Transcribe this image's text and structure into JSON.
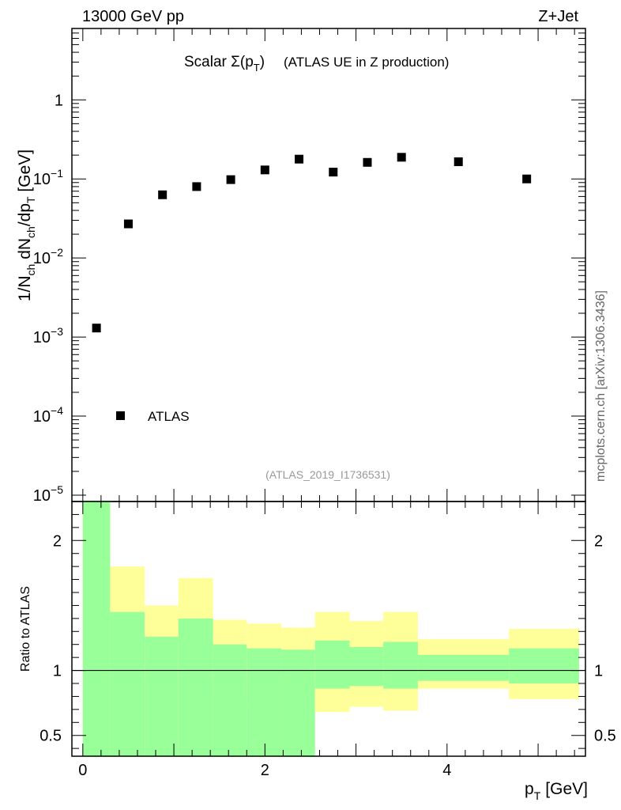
{
  "header": {
    "energy_label": "13000 GeV pp",
    "process_label": "Z+Jet",
    "side_label": "mcplots.cern.ch [arXiv:1306.3436]"
  },
  "chart_data": [
    {
      "type": "scatter",
      "panel": "main",
      "title_prefix": "Scalar ",
      "title_sigma": "Σ(p",
      "title_sub": "T",
      "title_close": ")",
      "title_suffix": "(ATLAS UE in Z production)",
      "analysis_id": "(ATLAS_2019_I1736531)",
      "ylabel": {
        "p1": "1/N",
        "s1": "ch",
        "p2": " dN",
        "s2": "ch",
        "p3": "/dp",
        "s3": "T",
        "p4": " [GeV]"
      },
      "yscale": "log",
      "ylim": [
        1e-05,
        8
      ],
      "xlim": [
        -0.12,
        5.52
      ],
      "legend": {
        "label": "ATLAS",
        "position": "bottom-left"
      },
      "yticks": [
        {
          "value": 1,
          "base": "1",
          "exp": ""
        },
        {
          "value": 0.1,
          "base": "10",
          "exp": "−1"
        },
        {
          "value": 0.01,
          "base": "10",
          "exp": "−2"
        },
        {
          "value": 0.001,
          "base": "10",
          "exp": "−3"
        },
        {
          "value": 0.0001,
          "base": "10",
          "exp": "−4"
        },
        {
          "value": 1e-05,
          "base": "10",
          "exp": "−5"
        }
      ],
      "series": [
        {
          "name": "ATLAS",
          "color": "#000000",
          "x": [
            0.15,
            0.5,
            0.875,
            1.25,
            1.625,
            2.0,
            2.375,
            2.75,
            3.125,
            3.5,
            4.125,
            4.875
          ],
          "y": [
            0.0013,
            0.027,
            0.063,
            0.08,
            0.098,
            0.13,
            0.178,
            0.122,
            0.162,
            0.188,
            0.165,
            0.1
          ]
        }
      ]
    },
    {
      "type": "band",
      "panel": "ratio",
      "ylabel": "Ratio to ATLAS",
      "xlabel": "p",
      "xlabel_sub": "T",
      "xlabel_unit": "[GeV]",
      "xlim": [
        -0.12,
        5.52
      ],
      "ylim": [
        0.34,
        2.3
      ],
      "yticks": [
        0.5,
        1,
        2
      ],
      "ytick_labels": [
        "0.5",
        "1",
        "2"
      ],
      "xticks": [
        0,
        2,
        4
      ],
      "xtick_labels": [
        "0",
        "2",
        "4"
      ],
      "reference_line": 1,
      "inner_color": "#99ff99",
      "outer_color": "#ffff99",
      "bins": [
        {
          "x0": 0.0,
          "x1": 0.3,
          "inner": [
            0.0,
            2.3
          ],
          "outer": [
            0.0,
            2.3
          ]
        },
        {
          "x0": 0.3,
          "x1": 0.68,
          "inner": [
            0.3,
            1.45
          ],
          "outer": [
            0.3,
            1.8
          ]
        },
        {
          "x0": 0.68,
          "x1": 1.05,
          "inner": [
            0.3,
            1.26
          ],
          "outer": [
            0.3,
            1.5
          ]
        },
        {
          "x0": 1.05,
          "x1": 1.43,
          "inner": [
            0.3,
            1.4
          ],
          "outer": [
            0.3,
            1.71
          ]
        },
        {
          "x0": 1.43,
          "x1": 1.8,
          "inner": [
            0.3,
            1.2
          ],
          "outer": [
            0.73,
            1.39
          ]
        },
        {
          "x0": 1.8,
          "x1": 2.18,
          "inner": [
            0.3,
            1.17
          ],
          "outer": [
            0.77,
            1.36
          ]
        },
        {
          "x0": 2.18,
          "x1": 2.55,
          "inner": [
            0.3,
            1.16
          ],
          "outer": [
            0.79,
            1.33
          ]
        },
        {
          "x0": 2.55,
          "x1": 2.93,
          "inner": [
            0.86,
            1.23
          ],
          "outer": [
            0.68,
            1.45
          ]
        },
        {
          "x0": 2.93,
          "x1": 3.3,
          "inner": [
            0.88,
            1.18
          ],
          "outer": [
            0.72,
            1.38
          ]
        },
        {
          "x0": 3.3,
          "x1": 3.68,
          "inner": [
            0.86,
            1.22
          ],
          "outer": [
            0.69,
            1.45
          ]
        },
        {
          "x0": 3.68,
          "x1": 4.68,
          "inner": [
            0.92,
            1.12
          ],
          "outer": [
            0.86,
            1.24
          ]
        },
        {
          "x0": 4.68,
          "x1": 5.45,
          "inner": [
            0.9,
            1.17
          ],
          "outer": [
            0.78,
            1.32
          ]
        }
      ]
    }
  ]
}
